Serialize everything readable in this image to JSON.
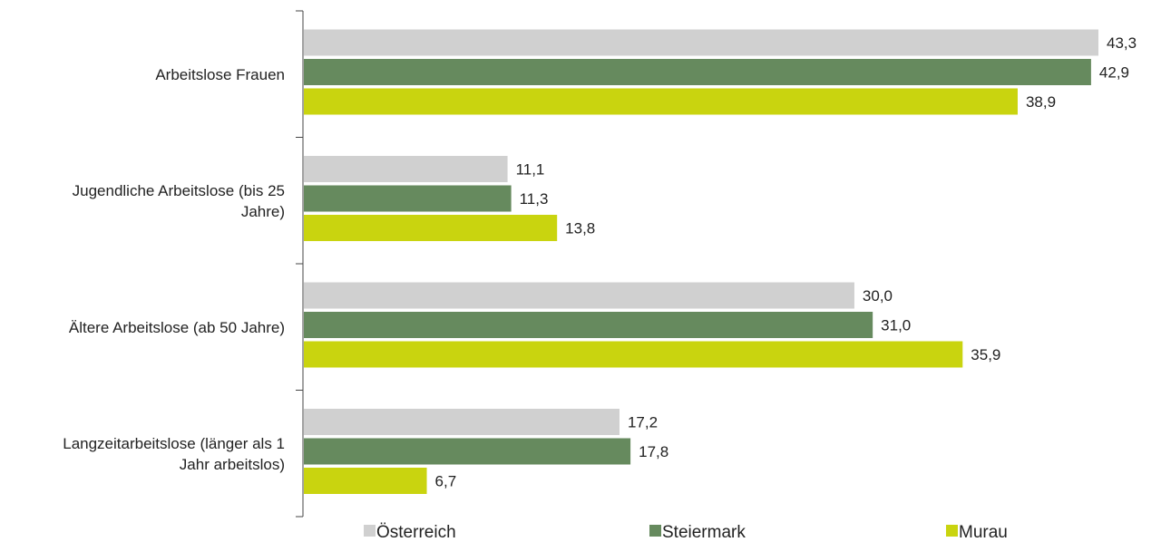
{
  "chart_data": {
    "type": "bar",
    "orientation": "horizontal",
    "title": "",
    "xlabel": "",
    "ylabel": "",
    "xlim": [
      0,
      43.3
    ],
    "grid": false,
    "legend_position": "bottom",
    "categories": [
      [
        "Arbeitslose Frauen"
      ],
      [
        "Jugendliche Arbeitslose (bis 25",
        "Jahre)"
      ],
      [
        "Ältere Arbeitslose (ab 50 Jahre)"
      ],
      [
        "Langzeitarbeitslose (länger als 1",
        "Jahr arbeitslos)"
      ]
    ],
    "series": [
      {
        "name": "Österreich",
        "color": "#d0d0d0",
        "values": [
          43.3,
          11.1,
          30.0,
          17.2
        ],
        "labels": [
          "43,3",
          "11,1",
          "30,0",
          "17,2"
        ]
      },
      {
        "name": "Steiermark",
        "color": "#668a5e",
        "values": [
          42.9,
          11.3,
          31.0,
          17.8
        ],
        "labels": [
          "42,9",
          "11,3",
          "31,0",
          "17,8"
        ]
      },
      {
        "name": "Murau",
        "color": "#c9d40f",
        "values": [
          38.9,
          13.8,
          35.9,
          6.7
        ],
        "labels": [
          "38,9",
          "13,8",
          "35,9",
          "6,7"
        ]
      }
    ]
  }
}
